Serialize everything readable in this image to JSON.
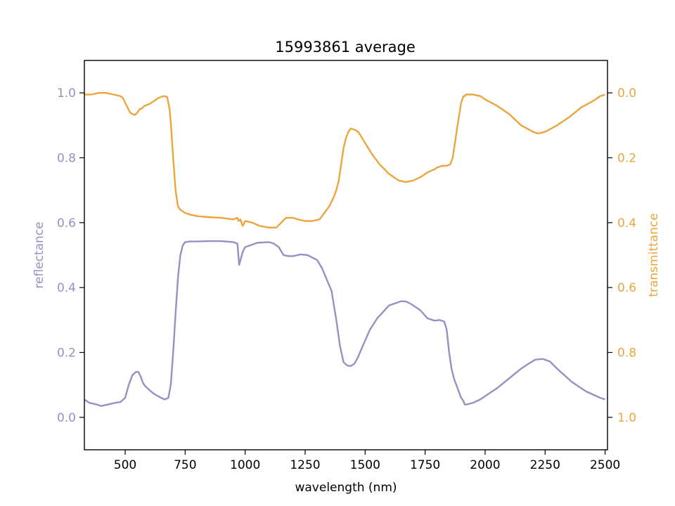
{
  "chart_data": {
    "type": "line",
    "title": "15993861 average",
    "xlabel": "wavelength (nm)",
    "ylabel_left": "reflectance",
    "ylabel_right": "transmittance",
    "xlim": [
      330,
      2510
    ],
    "ylim_left": [
      -0.1,
      1.1
    ],
    "ylim_right": [
      1.1,
      -0.1
    ],
    "right_axis_inverted": true,
    "grid": false,
    "colors": {
      "reflectance": "#9890c2",
      "transmittance": "#eca53e",
      "axis": "#000000"
    },
    "x_ticks": [
      500,
      750,
      1000,
      1250,
      1500,
      1750,
      2000,
      2250,
      2500
    ],
    "x_tick_labels": [
      "500",
      "750",
      "1000",
      "1250",
      "1500",
      "1750",
      "2000",
      "2250",
      "2500"
    ],
    "y_left_ticks": [
      0.0,
      0.2,
      0.4,
      0.6,
      0.8,
      1.0
    ],
    "y_left_tick_labels": [
      "0.0",
      "0.2",
      "0.4",
      "0.6",
      "0.8",
      "1.0"
    ],
    "y_right_ticks": [
      0.0,
      0.2,
      0.4,
      0.6,
      0.8,
      1.0
    ],
    "y_right_tick_labels": [
      "0.0",
      "0.2",
      "0.4",
      "0.6",
      "0.8",
      "1.0"
    ],
    "series": [
      {
        "name": "reflectance",
        "axis": "left",
        "x": [
          330,
          350,
          380,
          400,
          430,
          460,
          480,
          500,
          515,
          530,
          545,
          555,
          565,
          575,
          585,
          600,
          615,
          630,
          650,
          665,
          680,
          690,
          700,
          710,
          720,
          730,
          740,
          750,
          770,
          800,
          850,
          900,
          950,
          968,
          975,
          990,
          1000,
          1020,
          1050,
          1100,
          1120,
          1140,
          1160,
          1180,
          1200,
          1230,
          1260,
          1300,
          1320,
          1340,
          1360,
          1380,
          1395,
          1410,
          1425,
          1440,
          1455,
          1470,
          1490,
          1520,
          1550,
          1600,
          1650,
          1670,
          1690,
          1710,
          1730,
          1760,
          1790,
          1810,
          1830,
          1840,
          1850,
          1860,
          1870,
          1880,
          1890,
          1900,
          1910,
          1915,
          1925,
          1950,
          1980,
          2000,
          2050,
          2100,
          2150,
          2180,
          2210,
          2240,
          2270,
          2300,
          2330,
          2360,
          2390,
          2420,
          2450,
          2480,
          2500
        ],
        "y": [
          0.055,
          0.045,
          0.04,
          0.035,
          0.04,
          0.045,
          0.047,
          0.06,
          0.1,
          0.13,
          0.14,
          0.14,
          0.125,
          0.105,
          0.095,
          0.085,
          0.075,
          0.068,
          0.06,
          0.055,
          0.06,
          0.1,
          0.2,
          0.32,
          0.43,
          0.5,
          0.53,
          0.54,
          0.542,
          0.542,
          0.543,
          0.543,
          0.54,
          0.535,
          0.47,
          0.51,
          0.525,
          0.53,
          0.538,
          0.54,
          0.535,
          0.525,
          0.5,
          0.497,
          0.497,
          0.502,
          0.5,
          0.485,
          0.46,
          0.425,
          0.39,
          0.3,
          0.22,
          0.17,
          0.16,
          0.158,
          0.165,
          0.185,
          0.22,
          0.27,
          0.305,
          0.345,
          0.358,
          0.357,
          0.35,
          0.34,
          0.33,
          0.305,
          0.298,
          0.3,
          0.295,
          0.27,
          0.2,
          0.15,
          0.12,
          0.1,
          0.08,
          0.06,
          0.05,
          0.04,
          0.04,
          0.045,
          0.055,
          0.065,
          0.09,
          0.12,
          0.15,
          0.165,
          0.178,
          0.18,
          0.172,
          0.15,
          0.13,
          0.11,
          0.095,
          0.08,
          0.07,
          0.06,
          0.055
        ]
      },
      {
        "name": "transmittance",
        "axis": "right",
        "x": [
          330,
          360,
          390,
          420,
          450,
          470,
          480,
          490,
          500,
          510,
          520,
          530,
          540,
          550,
          560,
          570,
          580,
          600,
          620,
          640,
          660,
          675,
          685,
          690,
          700,
          710,
          720,
          730,
          740,
          750,
          770,
          800,
          850,
          900,
          950,
          968,
          972,
          980,
          990,
          1000,
          1030,
          1060,
          1100,
          1130,
          1150,
          1170,
          1200,
          1220,
          1250,
          1280,
          1310,
          1330,
          1350,
          1370,
          1380,
          1390,
          1400,
          1410,
          1420,
          1430,
          1440,
          1450,
          1460,
          1470,
          1480,
          1500,
          1530,
          1560,
          1600,
          1640,
          1670,
          1700,
          1730,
          1760,
          1790,
          1800,
          1820,
          1840,
          1855,
          1865,
          1875,
          1885,
          1895,
          1900,
          1905,
          1910,
          1915,
          1920,
          1950,
          1980,
          2000,
          2050,
          2100,
          2150,
          2200,
          2220,
          2250,
          2300,
          2350,
          2400,
          2450,
          2480,
          2500
        ],
        "y": [
          0.005,
          0.005,
          0.0,
          0.0,
          0.005,
          0.008,
          0.01,
          0.015,
          0.03,
          0.045,
          0.06,
          0.065,
          0.068,
          0.062,
          0.05,
          0.048,
          0.04,
          0.035,
          0.025,
          0.015,
          0.01,
          0.012,
          0.05,
          0.09,
          0.2,
          0.3,
          0.35,
          0.36,
          0.365,
          0.37,
          0.375,
          0.38,
          0.383,
          0.385,
          0.39,
          0.385,
          0.395,
          0.39,
          0.41,
          0.395,
          0.4,
          0.41,
          0.415,
          0.415,
          0.4,
          0.385,
          0.385,
          0.39,
          0.395,
          0.395,
          0.39,
          0.37,
          0.35,
          0.32,
          0.3,
          0.27,
          0.22,
          0.17,
          0.14,
          0.12,
          0.11,
          0.112,
          0.115,
          0.12,
          0.13,
          0.155,
          0.19,
          0.22,
          0.25,
          0.27,
          0.275,
          0.27,
          0.26,
          0.245,
          0.235,
          0.23,
          0.225,
          0.225,
          0.22,
          0.2,
          0.15,
          0.1,
          0.055,
          0.03,
          0.02,
          0.01,
          0.01,
          0.005,
          0.005,
          0.01,
          0.02,
          0.04,
          0.065,
          0.1,
          0.12,
          0.125,
          0.12,
          0.1,
          0.075,
          0.045,
          0.025,
          0.01,
          0.005
        ]
      }
    ]
  }
}
